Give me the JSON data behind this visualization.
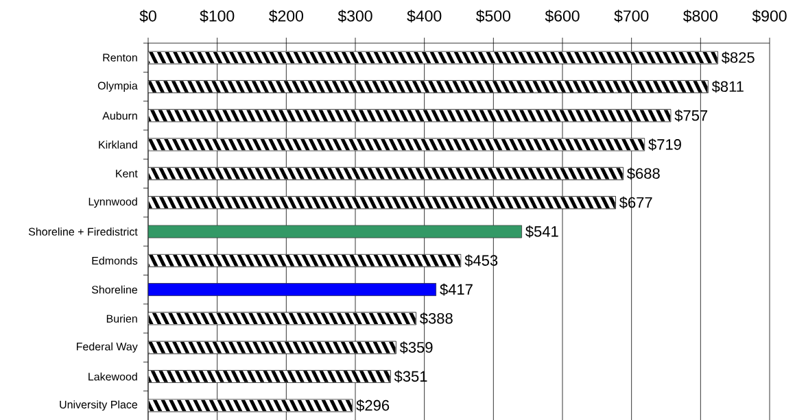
{
  "chart_data": {
    "type": "bar",
    "orientation": "horizontal",
    "categories": [
      "Renton",
      "Olympia",
      "Auburn",
      "Kirkland",
      "Kent",
      "Lynnwood",
      "Shoreline + Firedistrict",
      "Edmonds",
      "Shoreline",
      "Burien",
      "Federal Way",
      "Lakewood",
      "University Place"
    ],
    "values": [
      825,
      811,
      757,
      719,
      688,
      677,
      541,
      453,
      417,
      388,
      359,
      351,
      296
    ],
    "colors": [
      "#000000",
      "#000000",
      "#000000",
      "#000000",
      "#000000",
      "#000000",
      "#339966",
      "#000000",
      "#0000ff",
      "#000000",
      "#000000",
      "#000000",
      "#000000"
    ],
    "value_labels": [
      "$825",
      "$811",
      "$757",
      "$719",
      "$688",
      "$677",
      "$541",
      "$453",
      "$417",
      "$388",
      "$359",
      "$351",
      "$296"
    ],
    "xlim": [
      0,
      900
    ],
    "xticks": [
      {
        "value": 0,
        "label": "$0"
      },
      {
        "value": 100,
        "label": "$100"
      },
      {
        "value": 200,
        "label": "$200"
      },
      {
        "value": 300,
        "label": "$300"
      },
      {
        "value": 400,
        "label": "$400"
      },
      {
        "value": 500,
        "label": "$500"
      },
      {
        "value": 600,
        "label": "$600"
      },
      {
        "value": 700,
        "label": "$700"
      },
      {
        "value": 800,
        "label": "$800"
      },
      {
        "value": 900,
        "label": "$900"
      }
    ],
    "grid": "x"
  }
}
